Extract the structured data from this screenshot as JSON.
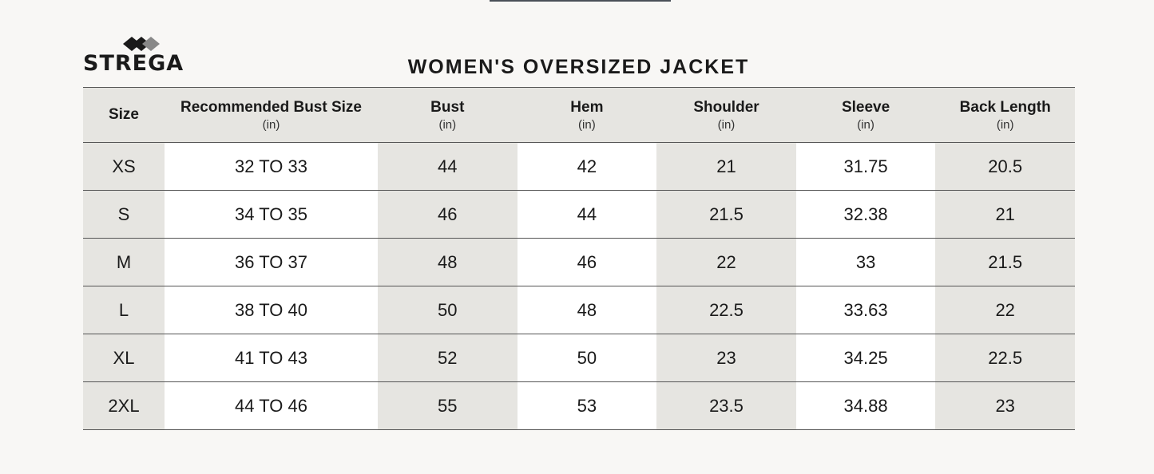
{
  "brand": {
    "name": "STREGA",
    "logo_icon": "diamond-logo-icon"
  },
  "title": "WOMEN'S OVERSIZED JACKET",
  "table": {
    "headers": [
      {
        "label": "Size",
        "unit": ""
      },
      {
        "label": "Recommended Bust Size",
        "unit": "(in)"
      },
      {
        "label": "Bust",
        "unit": "(in)"
      },
      {
        "label": "Hem",
        "unit": "(in)"
      },
      {
        "label": "Shoulder",
        "unit": "(in)"
      },
      {
        "label": "Sleeve",
        "unit": "(in)"
      },
      {
        "label": "Back Length",
        "unit": "(in)"
      }
    ],
    "rows": [
      [
        "XS",
        "32 TO 33",
        "44",
        "42",
        "21",
        "31.75",
        "20.5"
      ],
      [
        "S",
        "34 TO 35",
        "46",
        "44",
        "21.5",
        "32.38",
        "21"
      ],
      [
        "M",
        "36 TO 37",
        "48",
        "46",
        "22",
        "33",
        "21.5"
      ],
      [
        "L",
        "38 TO 40",
        "50",
        "48",
        "22.5",
        "33.63",
        "22"
      ],
      [
        "XL",
        "41 TO 43",
        "52",
        "50",
        "23",
        "34.25",
        "22.5"
      ],
      [
        "2XL",
        "44 TO 46",
        "55",
        "53",
        "23.5",
        "34.88",
        "23"
      ]
    ]
  },
  "colors": {
    "shade": "#e6e5e1",
    "background": "#f8f7f5",
    "text": "#1a1a1a"
  }
}
